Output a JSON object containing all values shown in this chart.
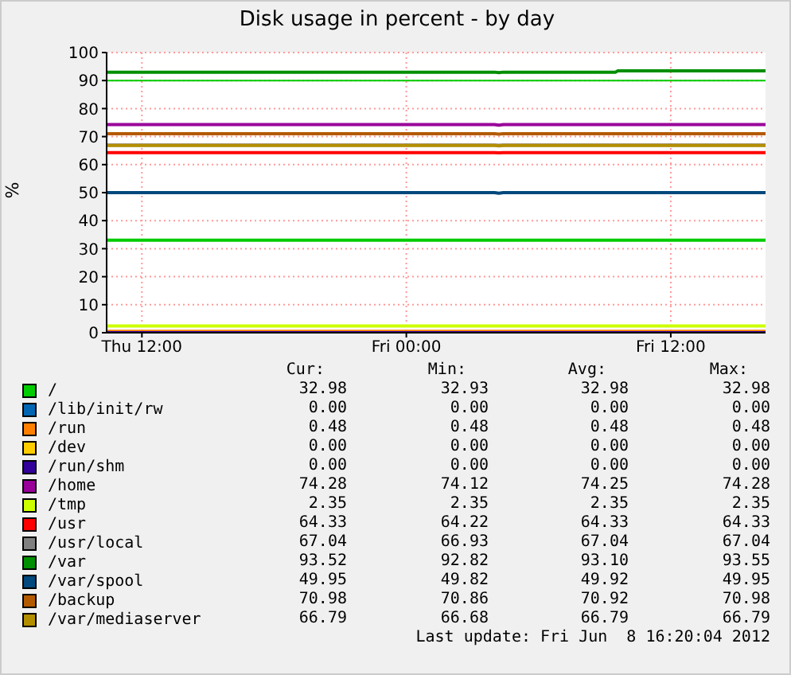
{
  "chart_data": {
    "type": "line",
    "title": "Disk usage in percent - by day",
    "ylabel": "%",
    "x": [
      "2012-06-07T10:24",
      "2012-06-08T04:00",
      "2012-06-08T04:12",
      "2012-06-08T04:24",
      "2012-06-08T09:30",
      "2012-06-08T09:36",
      "2012-06-08T16:18"
    ],
    "xlim": [
      "2012-06-07T10:24",
      "2012-06-08T16:18"
    ],
    "xticks": [
      {
        "value": "2012-06-07T12:00",
        "label": "Thu 12:00"
      },
      {
        "value": "2012-06-08T00:00",
        "label": "Fri 00:00"
      },
      {
        "value": "2012-06-08T12:00",
        "label": "Fri 12:00"
      }
    ],
    "ylim": [
      0,
      100
    ],
    "yticks": [
      0,
      10,
      20,
      30,
      40,
      50,
      60,
      70,
      80,
      90,
      100
    ],
    "grid": true,
    "legend": "bottom",
    "marker": "none",
    "line_style": "solid",
    "ref_lines": [
      {
        "axis": "y",
        "value": 90,
        "color": "#00cc00"
      }
    ],
    "series": [
      {
        "name": "/",
        "color": "#00cc00",
        "values": [
          33,
          33,
          33,
          33,
          33,
          33,
          33
        ]
      },
      {
        "name": "/lib/init/rw",
        "color": "#0066b3",
        "values": [
          null,
          null,
          null,
          null,
          null,
          null,
          null
        ]
      },
      {
        "name": "/run",
        "color": "#ff8000",
        "values": [
          0.5,
          0.5,
          0.5,
          0.5,
          0.5,
          0.5,
          0.5
        ]
      },
      {
        "name": "/dev",
        "color": "#ffcc00",
        "values": [
          null,
          null,
          null,
          null,
          null,
          null,
          null
        ]
      },
      {
        "name": "/run/shm",
        "color": "#330099",
        "values": [
          0,
          0,
          0,
          0,
          0,
          0,
          0
        ]
      },
      {
        "name": "/home",
        "color": "#990099",
        "values": [
          74.3,
          74.3,
          74.1,
          74.3,
          74.3,
          74.3,
          74.3
        ]
      },
      {
        "name": "/tmp",
        "color": "#ccff00",
        "values": [
          2.4,
          2.4,
          2.4,
          2.4,
          2.4,
          2.4,
          2.4
        ]
      },
      {
        "name": "/usr",
        "color": "#ff0000",
        "values": [
          64.3,
          64.3,
          64.2,
          64.3,
          64.3,
          64.3,
          64.3
        ]
      },
      {
        "name": "/usr/local",
        "color": "#808080",
        "values": [
          67,
          67,
          66.9,
          67,
          67,
          67,
          67
        ]
      },
      {
        "name": "/var",
        "color": "#008f00",
        "values": [
          93,
          93,
          92.8,
          93,
          93,
          93.5,
          93.5
        ]
      },
      {
        "name": "/var/spool",
        "color": "#00487d",
        "values": [
          50,
          50,
          49.8,
          50,
          50,
          50,
          50
        ]
      },
      {
        "name": "/backup",
        "color": "#b35a00",
        "values": [
          71,
          71,
          70.9,
          71,
          71,
          71,
          71
        ]
      },
      {
        "name": "/var/mediaserver",
        "color": "#b38f00",
        "values": [
          66.8,
          66.8,
          66.7,
          66.8,
          66.8,
          66.8,
          66.8
        ]
      }
    ],
    "annotations": [
      "Cur:",
      "Min:",
      "Avg:",
      "Max:",
      "32.98",
      "32.93",
      "32.98",
      "32.98",
      "0.00",
      "0.00",
      "0.00",
      "0.00",
      "0.48",
      "0.48",
      "0.48",
      "0.48",
      "0.00",
      "0.00",
      "0.00",
      "0.00",
      "0.00",
      "0.00",
      "0.00",
      "0.00",
      "74.28",
      "74.12",
      "74.25",
      "74.28",
      "2.35",
      "2.35",
      "2.35",
      "2.35",
      "64.33",
      "64.22",
      "64.33",
      "64.33",
      "67.04",
      "66.93",
      "67.04",
      "67.04",
      "93.52",
      "92.82",
      "93.10",
      "93.55",
      "49.95",
      "49.82",
      "49.92",
      "49.95",
      "70.98",
      "70.86",
      "70.92",
      "70.98",
      "66.79",
      "66.68",
      "66.79",
      "66.79",
      "Last update: Fri Jun  8 16:20:04 2012"
    ]
  }
}
